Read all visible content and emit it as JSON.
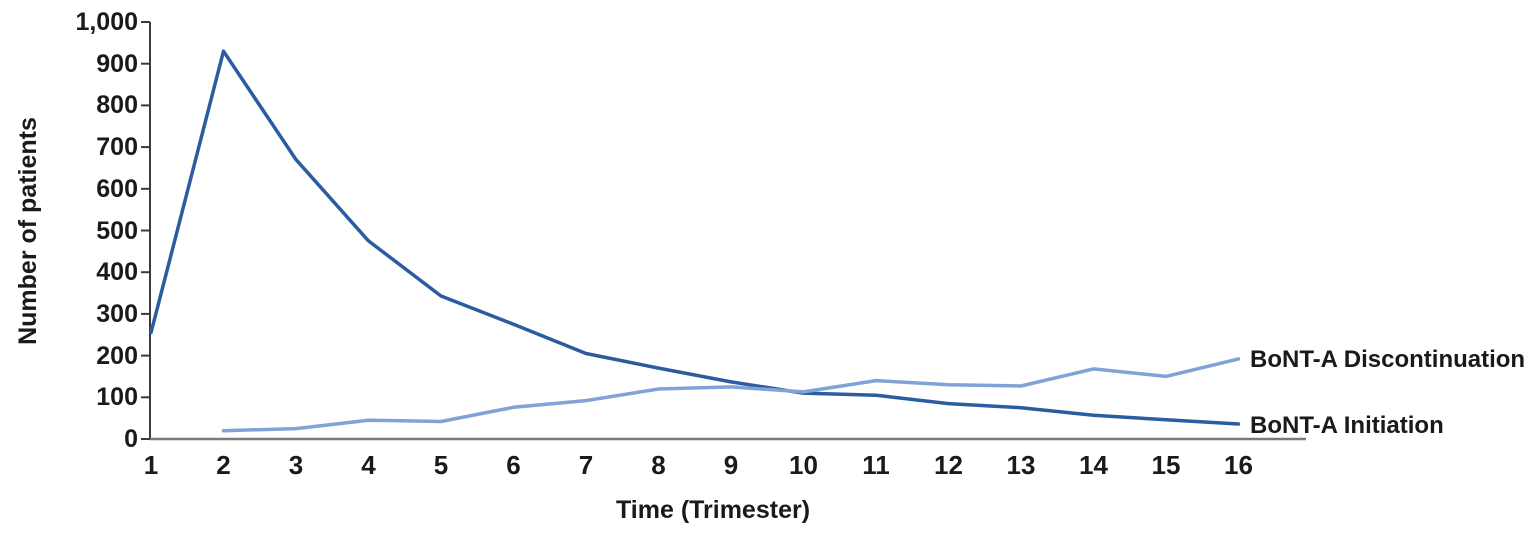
{
  "chart_data": {
    "type": "line",
    "xlabel": "Time (Trimester)",
    "ylabel": "Number of patients",
    "categories": [
      "1",
      "2",
      "3",
      "4",
      "5",
      "6",
      "7",
      "8",
      "9",
      "10",
      "11",
      "12",
      "13",
      "14",
      "15",
      "16"
    ],
    "ylim": [
      0,
      1000
    ],
    "y_tick_step": 100,
    "y_tick_labels": [
      "0",
      "100",
      "200",
      "300",
      "400",
      "500",
      "600",
      "700",
      "800",
      "900",
      "1,000"
    ],
    "grid": false,
    "legend_position": "labels-at-line-ends-right",
    "series": [
      {
        "name": "BoNT-A Initiation",
        "color": "#2B5CA0",
        "values": [
          255,
          930,
          670,
          475,
          343,
          275,
          205,
          170,
          137,
          110,
          105,
          85,
          75,
          57,
          46,
          36
        ]
      },
      {
        "name": "BoNT-A Discontinuation",
        "color": "#7FA3D6",
        "values": [
          null,
          20,
          25,
          45,
          42,
          76,
          92,
          120,
          125,
          113,
          140,
          130,
          127,
          168,
          150,
          192
        ]
      }
    ]
  },
  "colors": {
    "initiation_line": "#2B5CA0",
    "discontinuation_line": "#7FA3D6",
    "y_axis": "#3a3a3a",
    "x_axis": "#7a7a7a",
    "text": "#1a1a1a"
  }
}
